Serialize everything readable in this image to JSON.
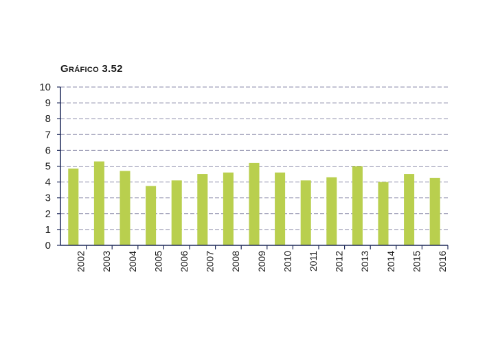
{
  "chart_data": {
    "type": "bar",
    "title": "Gráfico 3.52",
    "categories": [
      "2002",
      "2003",
      "2004",
      "2005",
      "2006",
      "2007",
      "2008",
      "2009",
      "2010",
      "2011",
      "2012",
      "2013",
      "2014",
      "2015",
      "2016"
    ],
    "values": [
      4.85,
      5.3,
      4.7,
      3.75,
      4.1,
      4.5,
      4.6,
      5.2,
      4.6,
      4.1,
      4.3,
      5.0,
      4.0,
      4.5,
      4.25
    ],
    "ylim": [
      0,
      10
    ],
    "yticks": [
      0,
      1,
      2,
      3,
      4,
      5,
      6,
      7,
      8,
      9,
      10
    ],
    "xlabel": "",
    "ylabel": "",
    "grid": true,
    "bar_color": "#b9cf4e",
    "grid_color": "#8a8aa8",
    "axis_color": "#1f2a5a"
  }
}
